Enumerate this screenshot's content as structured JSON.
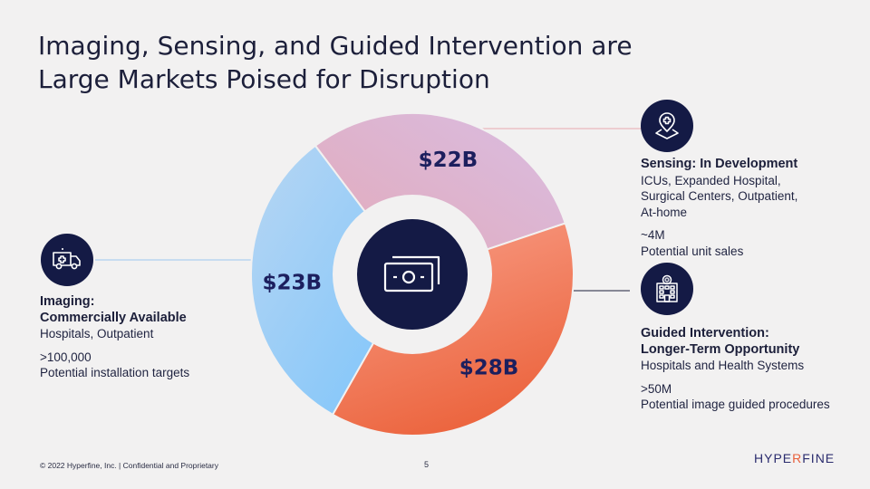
{
  "title": {
    "line1": "Imaging, Sensing, and Guided Intervention are",
    "line2": "Large Markets Poised for Disruption"
  },
  "chart_data": {
    "type": "pie",
    "style": "donut",
    "center_icon": "money-icon",
    "categories": [
      "Sensing",
      "Guided Intervention",
      "Imaging"
    ],
    "values": [
      22,
      28,
      23
    ],
    "labels": [
      "$22B",
      "$28B",
      "$23B"
    ],
    "colors": {
      "Sensing": [
        "#d8b8dd",
        "#e3aab8"
      ],
      "Guided Intervention": [
        "#f8957a",
        "#ee6a45"
      ],
      "Imaging": [
        "#86c8fb",
        "#b6d6f4"
      ]
    }
  },
  "imaging": {
    "icon": "ambulance-icon",
    "heading1": "Imaging:",
    "heading2": "Commercially Available",
    "desc": "Hospitals, Outpatient",
    "stat": ">100,000",
    "stat_label": "Potential installation targets"
  },
  "sensing": {
    "icon": "map-pin-medical-icon",
    "heading": "Sensing: In Development",
    "desc_lines": [
      "ICUs, Expanded Hospital,",
      "Surgical  Centers, Outpatient,",
      "At-home"
    ],
    "stat": "~4M",
    "stat_label": "Potential unit sales"
  },
  "guided": {
    "icon": "hospital-building-icon",
    "heading1": "Guided Intervention:",
    "heading2": "Longer-Term Opportunity",
    "desc": "Hospitals and Health Systems",
    "stat": ">50M",
    "stat_label": "Potential image guided procedures"
  },
  "footer": {
    "copyright": "© 2022 Hyperfine, Inc. | Confidential and Proprietary",
    "page_number": "5",
    "logo_part1": "HYPE",
    "logo_part2": "R",
    "logo_part3": "FINE"
  }
}
